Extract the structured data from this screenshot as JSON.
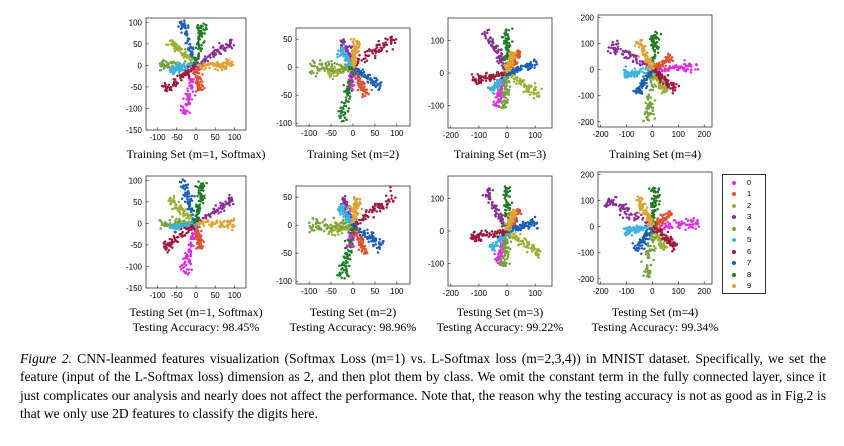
{
  "classes": [
    "0",
    "1",
    "2",
    "3",
    "4",
    "5",
    "6",
    "7",
    "8",
    "9"
  ],
  "class_colors": [
    "#e329e6",
    "#e0522b",
    "#9bb134",
    "#8c2b9b",
    "#74a43a",
    "#3ab3e1",
    "#a0183a",
    "#1b5fb9",
    "#1c7d25",
    "#e0a230"
  ],
  "chart_data": [
    {
      "type": "scatter",
      "set": "train",
      "m": 1,
      "label": "Training Set (m=1, Softmax)",
      "xticks": [
        -100,
        -50,
        0,
        50,
        100
      ],
      "yticks": [
        -150,
        -100,
        -50,
        0,
        50,
        100
      ],
      "xlim": [
        -130,
        130
      ],
      "ylim": [
        -150,
        110
      ],
      "rays": [
        {
          "class": "0",
          "angle": 255,
          "length": 120
        },
        {
          "class": "1",
          "angle": 280,
          "length": 60
        },
        {
          "class": "2",
          "angle": 140,
          "length": 90
        },
        {
          "class": "3",
          "angle": 30,
          "length": 110
        },
        {
          "class": "4",
          "angle": 180,
          "length": 95
        },
        {
          "class": "5",
          "angle": 190,
          "length": 70
        },
        {
          "class": "6",
          "angle": 215,
          "length": 100
        },
        {
          "class": "7",
          "angle": 110,
          "length": 110
        },
        {
          "class": "8",
          "angle": 80,
          "length": 100
        },
        {
          "class": "9",
          "angle": 0,
          "length": 100
        }
      ]
    },
    {
      "type": "scatter",
      "set": "train",
      "m": 2,
      "label": "Training Set (m=2)",
      "xticks": [
        -100,
        -50,
        0,
        50,
        100
      ],
      "yticks": [
        -100,
        -50,
        0,
        50
      ],
      "xlim": [
        -130,
        130
      ],
      "ylim": [
        -105,
        70
      ],
      "rays": [
        {
          "class": "0",
          "angle": 260,
          "length": 40
        },
        {
          "class": "1",
          "angle": 300,
          "length": 60
        },
        {
          "class": "2",
          "angle": 190,
          "length": 60
        },
        {
          "class": "3",
          "angle": 115,
          "length": 55
        },
        {
          "class": "4",
          "angle": 180,
          "length": 100
        },
        {
          "class": "5",
          "angle": 130,
          "length": 45
        },
        {
          "class": "6",
          "angle": 30,
          "length": 110
        },
        {
          "class": "7",
          "angle": 330,
          "length": 75
        },
        {
          "class": "8",
          "angle": 255,
          "length": 100
        },
        {
          "class": "9",
          "angle": 80,
          "length": 50
        }
      ]
    },
    {
      "type": "scatter",
      "set": "train",
      "m": 3,
      "label": "Training Set (m=3)",
      "xticks": [
        -200,
        -100,
        0,
        100
      ],
      "yticks": [
        -100,
        0,
        100
      ],
      "xlim": [
        -210,
        160
      ],
      "ylim": [
        -170,
        170
      ],
      "rays": [
        {
          "class": "0",
          "angle": 250,
          "length": 110
        },
        {
          "class": "1",
          "angle": 55,
          "length": 80
        },
        {
          "class": "2",
          "angle": 330,
          "length": 140
        },
        {
          "class": "3",
          "angle": 120,
          "length": 150
        },
        {
          "class": "4",
          "angle": 265,
          "length": 110
        },
        {
          "class": "5",
          "angle": 225,
          "length": 80
        },
        {
          "class": "6",
          "angle": 190,
          "length": 130
        },
        {
          "class": "7",
          "angle": 15,
          "length": 110
        },
        {
          "class": "8",
          "angle": 90,
          "length": 140
        },
        {
          "class": "9",
          "angle": 70,
          "length": 70
        }
      ]
    },
    {
      "type": "scatter",
      "set": "train",
      "m": 4,
      "label": "Training Set (m=4)",
      "xticks": [
        -200,
        -100,
        0,
        100,
        200
      ],
      "yticks": [
        -200,
        -100,
        0,
        100,
        200
      ],
      "xlim": [
        -210,
        230
      ],
      "ylim": [
        -220,
        210
      ],
      "rays": [
        {
          "class": "0",
          "angle": 5,
          "length": 180
        },
        {
          "class": "1",
          "angle": 35,
          "length": 90
        },
        {
          "class": "2",
          "angle": 300,
          "length": 100
        },
        {
          "class": "3",
          "angle": 150,
          "length": 200
        },
        {
          "class": "4",
          "angle": 265,
          "length": 200
        },
        {
          "class": "5",
          "angle": 190,
          "length": 110
        },
        {
          "class": "6",
          "angle": 320,
          "length": 120
        },
        {
          "class": "7",
          "angle": 235,
          "length": 110
        },
        {
          "class": "8",
          "angle": 85,
          "length": 150
        },
        {
          "class": "9",
          "angle": 115,
          "length": 130
        }
      ]
    },
    {
      "type": "scatter",
      "set": "test",
      "m": 1,
      "label": "Testing Set (m=1, Softmax)",
      "accuracy": "Testing Accuracy: 98.45%",
      "xticks": [
        -100,
        -50,
        0,
        50,
        100
      ],
      "yticks": [
        -150,
        -100,
        -50,
        0,
        50,
        100
      ],
      "xlim": [
        -130,
        130
      ],
      "ylim": [
        -150,
        110
      ],
      "rays": [
        {
          "class": "0",
          "angle": 255,
          "length": 120
        },
        {
          "class": "1",
          "angle": 280,
          "length": 60
        },
        {
          "class": "2",
          "angle": 140,
          "length": 90
        },
        {
          "class": "3",
          "angle": 30,
          "length": 110
        },
        {
          "class": "4",
          "angle": 180,
          "length": 95
        },
        {
          "class": "5",
          "angle": 190,
          "length": 70
        },
        {
          "class": "6",
          "angle": 215,
          "length": 100
        },
        {
          "class": "7",
          "angle": 110,
          "length": 110
        },
        {
          "class": "8",
          "angle": 80,
          "length": 100
        },
        {
          "class": "9",
          "angle": 0,
          "length": 100
        }
      ]
    },
    {
      "type": "scatter",
      "set": "test",
      "m": 2,
      "label": "Testing Set (m=2)",
      "accuracy": "Testing Accuracy: 98.96%",
      "xticks": [
        -100,
        -50,
        0,
        50,
        100
      ],
      "yticks": [
        -100,
        -50,
        0,
        50
      ],
      "xlim": [
        -130,
        130
      ],
      "ylim": [
        -105,
        70
      ],
      "rays": [
        {
          "class": "0",
          "angle": 260,
          "length": 40
        },
        {
          "class": "1",
          "angle": 300,
          "length": 60
        },
        {
          "class": "2",
          "angle": 190,
          "length": 60
        },
        {
          "class": "3",
          "angle": 115,
          "length": 55
        },
        {
          "class": "4",
          "angle": 180,
          "length": 100
        },
        {
          "class": "5",
          "angle": 130,
          "length": 45
        },
        {
          "class": "6",
          "angle": 30,
          "length": 110
        },
        {
          "class": "7",
          "angle": 330,
          "length": 75
        },
        {
          "class": "8",
          "angle": 255,
          "length": 100
        },
        {
          "class": "9",
          "angle": 80,
          "length": 50
        }
      ]
    },
    {
      "type": "scatter",
      "set": "test",
      "m": 3,
      "label": "Testing Set (m=3)",
      "accuracy": "Testing Accuracy: 99.22%",
      "xticks": [
        -200,
        -100,
        0,
        100
      ],
      "yticks": [
        -100,
        0,
        100
      ],
      "xlim": [
        -210,
        160
      ],
      "ylim": [
        -170,
        170
      ],
      "rays": [
        {
          "class": "0",
          "angle": 250,
          "length": 110
        },
        {
          "class": "1",
          "angle": 55,
          "length": 80
        },
        {
          "class": "2",
          "angle": 330,
          "length": 140
        },
        {
          "class": "3",
          "angle": 120,
          "length": 150
        },
        {
          "class": "4",
          "angle": 265,
          "length": 110
        },
        {
          "class": "5",
          "angle": 225,
          "length": 80
        },
        {
          "class": "6",
          "angle": 190,
          "length": 130
        },
        {
          "class": "7",
          "angle": 15,
          "length": 110
        },
        {
          "class": "8",
          "angle": 90,
          "length": 140
        },
        {
          "class": "9",
          "angle": 70,
          "length": 70
        }
      ]
    },
    {
      "type": "scatter",
      "set": "test",
      "m": 4,
      "label": "Testing Set (m=4)",
      "accuracy": "Testing Accuracy: 99.34%",
      "xticks": [
        -200,
        -100,
        0,
        100,
        200
      ],
      "yticks": [
        -200,
        -100,
        0,
        100,
        200
      ],
      "xlim": [
        -210,
        230
      ],
      "ylim": [
        -220,
        210
      ],
      "rays": [
        {
          "class": "0",
          "angle": 5,
          "length": 180
        },
        {
          "class": "1",
          "angle": 35,
          "length": 90
        },
        {
          "class": "2",
          "angle": 300,
          "length": 100
        },
        {
          "class": "3",
          "angle": 150,
          "length": 200
        },
        {
          "class": "4",
          "angle": 265,
          "length": 200
        },
        {
          "class": "5",
          "angle": 190,
          "length": 110
        },
        {
          "class": "6",
          "angle": 320,
          "length": 120
        },
        {
          "class": "7",
          "angle": 235,
          "length": 110
        },
        {
          "class": "8",
          "angle": 85,
          "length": 150
        },
        {
          "class": "9",
          "angle": 115,
          "length": 130
        }
      ]
    }
  ],
  "caption": {
    "figure_label": "Figure 2.",
    "text": " CNN-leanmed features visualization (Softmax Loss (m=1) vs. L-Softmax loss (m=2,3,4)) in MNIST dataset. Specifically, we set the feature (input of the L-Softmax loss) dimension as 2, and then plot them by class. We omit the constant term in the fully connected layer, since it just complicates our analysis and nearly does not affect the performance. Note that, the reason why the testing accuracy is not as good as in Fig.2 is that we only use 2D features to classify the digits here."
  }
}
